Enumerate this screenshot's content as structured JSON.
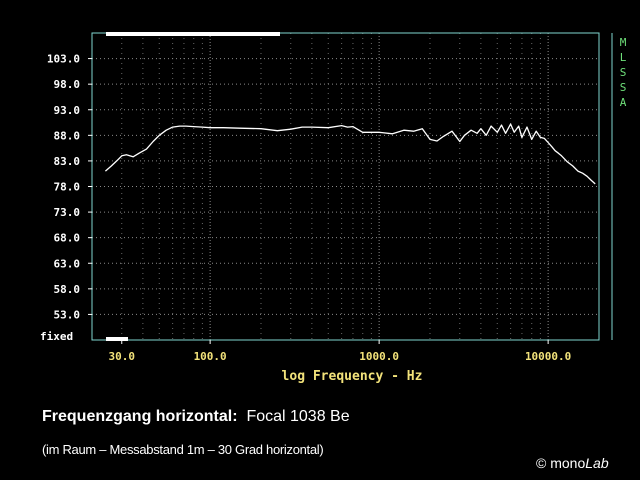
{
  "chart_data": {
    "type": "line",
    "title": "",
    "xlabel": "log Frequency - Hz",
    "ylabel": "",
    "xscale": "log",
    "xlim": [
      20,
      20000
    ],
    "ylim": [
      48,
      108
    ],
    "x_ticks": [
      {
        "value": 30,
        "label": "30.0"
      },
      {
        "value": 100,
        "label": "100.0"
      },
      {
        "value": 1000,
        "label": "1000.0"
      },
      {
        "value": 10000,
        "label": "10000.0"
      }
    ],
    "y_ticks": [
      {
        "value": 103,
        "label": "103.0"
      },
      {
        "value": 98,
        "label": "98.0"
      },
      {
        "value": 93,
        "label": "93.0"
      },
      {
        "value": 88,
        "label": "88.0"
      },
      {
        "value": 83,
        "label": "83.0"
      },
      {
        "value": 78,
        "label": "78.0"
      },
      {
        "value": 73,
        "label": "73.0"
      },
      {
        "value": 68,
        "label": "68.0"
      },
      {
        "value": 63,
        "label": "63.0"
      },
      {
        "value": 58,
        "label": "58.0"
      },
      {
        "value": 53,
        "label": "53.0"
      }
    ],
    "fixed_label": "fixed",
    "side_label": [
      "M",
      "L",
      "S",
      "S",
      "A"
    ],
    "grid": true,
    "colors": {
      "background": "#000000",
      "frame": "#7fd6d0",
      "grid": "#8a8a8a",
      "curve": "#ffffff",
      "x_text": "#f2e27a",
      "side_text": "#6fe07a"
    },
    "series": [
      {
        "x": [
          24,
          26,
          28,
          30,
          32,
          35,
          38,
          42,
          46,
          50,
          55,
          60,
          66,
          72,
          80,
          90,
          100,
          120,
          150,
          200,
          250,
          300,
          350,
          400,
          500,
          600,
          650,
          700,
          800,
          1000,
          1200,
          1400,
          1600,
          1800,
          2000,
          2200,
          2400,
          2700,
          3000,
          3200,
          3500,
          3800,
          4000,
          4300,
          4600,
          5000,
          5300,
          5600,
          6000,
          6300,
          6700,
          7000,
          7500,
          8000,
          8500,
          9000,
          9500,
          10000,
          10500,
          11000,
          11500,
          12000,
          13000,
          14000,
          15000,
          16000,
          17000,
          18000,
          19000
        ],
        "y": [
          81.0,
          82.0,
          83.0,
          84.0,
          84.2,
          83.8,
          84.5,
          85.3,
          86.8,
          88.0,
          89.0,
          89.6,
          89.8,
          89.8,
          89.7,
          89.6,
          89.5,
          89.5,
          89.4,
          89.3,
          88.9,
          89.2,
          89.6,
          89.6,
          89.5,
          89.9,
          89.6,
          89.7,
          88.6,
          88.6,
          88.3,
          89.0,
          88.8,
          89.3,
          87.2,
          86.9,
          87.8,
          88.8,
          86.8,
          88.0,
          89.0,
          88.4,
          89.3,
          88.0,
          89.8,
          88.6,
          90.0,
          88.4,
          90.2,
          88.6,
          89.8,
          87.6,
          89.6,
          87.2,
          88.8,
          87.6,
          87.4,
          86.6,
          85.8,
          85.0,
          84.5,
          84.0,
          82.8,
          82.0,
          81.0,
          80.6,
          80.0,
          79.2,
          78.5
        ]
      }
    ]
  },
  "caption": {
    "title_bold": "Frequenzgang horizontal:",
    "title_rest": "Focal 1038 Be",
    "subtitle": "(im Raum – Messabstand 1m – 30 Grad horizontal)"
  },
  "copyright": {
    "symbol": "©",
    "brand_plain": "mono",
    "brand_italic": "Lab"
  }
}
